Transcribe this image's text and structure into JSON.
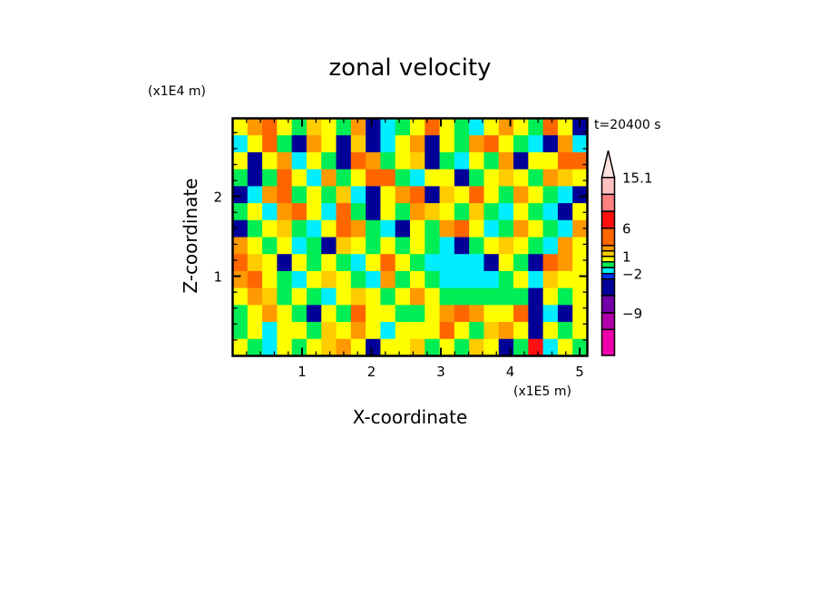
{
  "chart_data": {
    "type": "heatmap",
    "title": "zonal velocity",
    "xlabel": "X-coordinate",
    "ylabel": "Z-coordinate",
    "x_unit": "(x1E5 m)",
    "y_unit": "(x1E4 m)",
    "annotation": "t=20400 s",
    "xlim": [
      0,
      5.11
    ],
    "ylim": [
      0,
      2.98
    ],
    "x_ticks": [
      1,
      2,
      3,
      4,
      5
    ],
    "x_tick_labels": [
      "1",
      "2",
      "3",
      "4",
      "5"
    ],
    "y_ticks": [
      1,
      2
    ],
    "y_tick_labels": [
      "1",
      "2"
    ],
    "colorbar": {
      "levels": [
        -12,
        -9,
        -6,
        -3,
        -2,
        -1,
        0,
        1,
        2,
        3,
        6,
        9,
        12,
        15.1
      ],
      "labels": [
        {
          "value": 15.1,
          "text": "15.1"
        },
        {
          "value": 6,
          "text": "6"
        },
        {
          "value": 1,
          "text": "1"
        },
        {
          "value": -2,
          "text": "−2"
        },
        {
          "value": -9,
          "text": "−9"
        }
      ],
      "colors": [
        "#ee00aa",
        "#b000aa",
        "#7400aa",
        "#000099",
        "#0030ff",
        "#00eeff",
        "#00ee55",
        "#ffff00",
        "#ffcc00",
        "#ff9900",
        "#ff6600",
        "#ff1010",
        "#ff8080",
        "#ffc0c0",
        "#ffe0e0"
      ]
    },
    "grid_rows_top_to_bottom": [
      [
        0.5,
        2.5,
        3.5,
        0.5,
        -0.5,
        1.5,
        0.5,
        -0.5,
        2.5,
        -5,
        -1.5,
        -0.5,
        0.5,
        3.5,
        0.5,
        -0.5,
        -1.5,
        0.5,
        2.5,
        0.5,
        -0.5,
        3.5,
        0.5,
        -4
      ],
      [
        -1.5,
        0.5,
        3.5,
        -0.5,
        -4,
        2.5,
        0.5,
        -4,
        1.5,
        -4,
        -1.5,
        0.5,
        2.5,
        -4,
        0.5,
        -0.5,
        2.5,
        3.5,
        0.5,
        -0.5,
        -1.5,
        -4,
        2.5,
        -1.5
      ],
      [
        0.5,
        -5,
        0.5,
        2.5,
        -1.5,
        0.5,
        -0.5,
        -4,
        3.5,
        2.5,
        -0.5,
        0.5,
        1.5,
        -5,
        -0.5,
        -1.5,
        0.5,
        -0.5,
        2.5,
        -4,
        0.5,
        0.5,
        3.5,
        4
      ],
      [
        -0.5,
        -5,
        -0.5,
        3.5,
        0.5,
        -1.5,
        2.5,
        -0.5,
        0.5,
        4,
        3.5,
        -0.5,
        -1.5,
        0.5,
        0.5,
        -4,
        -0.5,
        0.5,
        1.5,
        0.5,
        -0.5,
        2.5,
        1.5,
        0.5
      ],
      [
        -4,
        -1.5,
        2.5,
        3.5,
        -0.5,
        0.5,
        -0.5,
        1.5,
        -1.5,
        -4,
        0.5,
        2.5,
        3.5,
        -4,
        1.5,
        0.5,
        3.5,
        0.5,
        -0.5,
        2.5,
        0.5,
        -0.5,
        -1.5,
        -4
      ],
      [
        -0.5,
        0.5,
        -1.5,
        2.5,
        4,
        0.5,
        -1.5,
        3.5,
        -0.5,
        -4,
        0.5,
        -0.5,
        2.5,
        1.5,
        0.5,
        -0.5,
        1.5,
        -0.5,
        -1.5,
        0.5,
        -0.5,
        -1.5,
        -4,
        0.5
      ],
      [
        -5,
        -0.5,
        0.5,
        1.5,
        -0.5,
        -1.5,
        0.5,
        4,
        2.5,
        -0.5,
        -1.5,
        -4,
        0.5,
        -0.5,
        2.5,
        3.5,
        0.5,
        -1.5,
        -0.5,
        2.5,
        0.5,
        -0.5,
        -1.5,
        2.5
      ],
      [
        2.5,
        0.5,
        -0.5,
        0.5,
        -1.5,
        -0.5,
        -4,
        1.5,
        0.5,
        -0.5,
        0.5,
        -0.5,
        0.5,
        -0.5,
        -1.5,
        -4,
        -0.5,
        0.5,
        1.5,
        0.5,
        -0.5,
        -1.5,
        2.5,
        0.5
      ],
      [
        3.5,
        1.5,
        0.5,
        -4,
        0.5,
        -0.5,
        0.5,
        -0.5,
        -1.5,
        0.5,
        3.5,
        0.5,
        -0.5,
        -1.5,
        -1.5,
        -1.5,
        -1.5,
        -4,
        0.5,
        -0.5,
        -4,
        3.5,
        2.5,
        0.5
      ],
      [
        2.5,
        3.5,
        0.5,
        -0.5,
        -1.5,
        0.5,
        1.5,
        0.5,
        -0.5,
        -1.5,
        2.5,
        -0.5,
        0.5,
        -0.5,
        -1.5,
        -1.5,
        -1.5,
        -1.5,
        -0.5,
        0.5,
        -1.5,
        1.5,
        0.5,
        0.5
      ],
      [
        0.5,
        2.5,
        1.5,
        -0.5,
        0.5,
        -0.5,
        -1.5,
        0.5,
        1.5,
        0.5,
        -0.5,
        0.5,
        2.5,
        0.5,
        -0.5,
        -0.5,
        -0.5,
        -0.5,
        -0.5,
        -0.5,
        -5,
        0.5,
        -0.5,
        0.5
      ],
      [
        -0.5,
        0.5,
        2.5,
        0.5,
        -0.5,
        -5,
        0.5,
        -0.5,
        3.5,
        0.5,
        0.5,
        -0.5,
        -0.5,
        0.5,
        2.5,
        3.5,
        2.5,
        0.5,
        0.5,
        3.5,
        -6,
        -1.5,
        -4,
        0.5
      ],
      [
        -0.5,
        0.5,
        -1.5,
        0.5,
        0.5,
        -0.5,
        1.5,
        0.5,
        2.5,
        0.5,
        -1.5,
        0.5,
        0.5,
        0.5,
        3.5,
        0.5,
        -0.5,
        1.5,
        2.5,
        0.5,
        -5,
        0.5,
        -0.5,
        0.5
      ],
      [
        0.5,
        -0.5,
        -1.5,
        0.5,
        -0.5,
        0.5,
        1.5,
        2.5,
        0.5,
        -4,
        0.5,
        0.5,
        1.5,
        -0.5,
        0.5,
        -0.5,
        1.5,
        0.5,
        -4,
        -0.5,
        7,
        -1.5,
        0.5,
        -0.5
      ]
    ]
  }
}
